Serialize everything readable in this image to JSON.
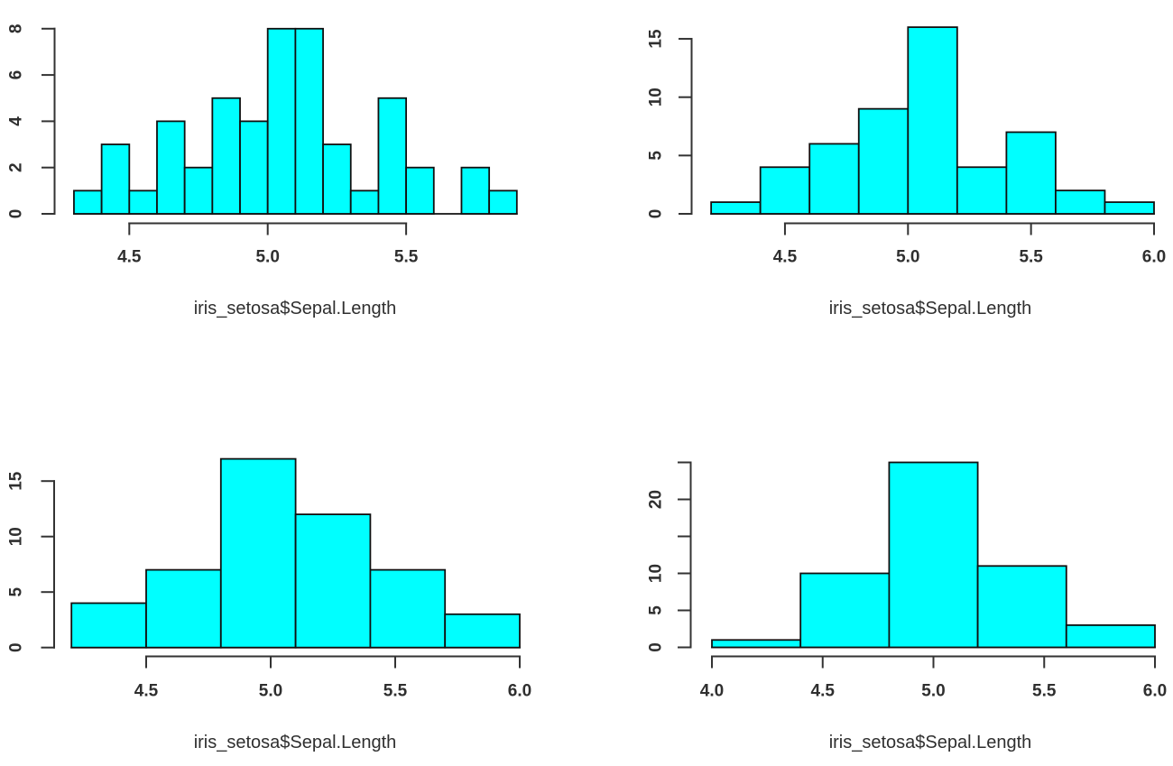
{
  "figure": {
    "background": "#ffffff",
    "bar_fill": "#00ffff",
    "bar_border": "#101010",
    "axis_color": "#333333",
    "text_color": "#2f2f2f"
  },
  "chart_data": [
    {
      "id": "top-left-histogram",
      "type": "bar",
      "subtype": "histogram",
      "title": "",
      "xlabel": "iris_setosa$Sepal.Length",
      "ylabel": "",
      "bin_start": 4.3,
      "bin_width": 0.1,
      "counts": [
        1,
        3,
        1,
        4,
        2,
        5,
        4,
        8,
        8,
        3,
        1,
        5,
        2,
        0,
        2,
        1
      ],
      "xlim": [
        4.3,
        5.9
      ],
      "ylim": [
        0,
        8
      ],
      "x_ticks": [
        4.5,
        5.0,
        5.5
      ],
      "x_tick_labels": [
        "4.5",
        "5.0",
        "5.5"
      ],
      "y_ticks": [
        0,
        2,
        4,
        6,
        8
      ],
      "y_tick_labels": [
        "0",
        "2",
        "4",
        "6",
        "8"
      ],
      "grid": false,
      "legend": false
    },
    {
      "id": "top-right-histogram",
      "type": "bar",
      "subtype": "histogram",
      "title": "",
      "xlabel": "iris_setosa$Sepal.Length",
      "ylabel": "",
      "bin_start": 4.2,
      "bin_width": 0.2,
      "counts": [
        1,
        4,
        6,
        9,
        16,
        4,
        7,
        2,
        1
      ],
      "xlim": [
        4.2,
        6.0
      ],
      "ylim": [
        0,
        16
      ],
      "x_ticks": [
        4.5,
        5.0,
        5.5,
        6.0
      ],
      "x_tick_labels": [
        "4.5",
        "5.0",
        "5.5",
        "6.0"
      ],
      "y_ticks": [
        0,
        5,
        10,
        15
      ],
      "y_tick_labels": [
        "0",
        "5",
        "10",
        "15"
      ],
      "grid": false,
      "legend": false
    },
    {
      "id": "bottom-left-histogram",
      "type": "bar",
      "subtype": "histogram",
      "title": "",
      "xlabel": "iris_setosa$Sepal.Length",
      "ylabel": "",
      "bin_start": 4.2,
      "bin_width": 0.3,
      "counts": [
        4,
        7,
        17,
        12,
        7,
        3
      ],
      "xlim": [
        4.2,
        6.0
      ],
      "ylim": [
        0,
        17
      ],
      "x_ticks": [
        4.5,
        5.0,
        5.5,
        6.0
      ],
      "x_tick_labels": [
        "4.5",
        "5.0",
        "5.5",
        "6.0"
      ],
      "y_ticks": [
        0,
        5,
        10,
        15
      ],
      "y_tick_labels": [
        "0",
        "5",
        "10",
        "15"
      ],
      "grid": false,
      "legend": false
    },
    {
      "id": "bottom-right-histogram",
      "type": "bar",
      "subtype": "histogram",
      "title": "",
      "xlabel": "iris_setosa$Sepal.Length",
      "ylabel": "",
      "bin_start": 4.0,
      "bin_width": 0.4,
      "counts": [
        1,
        10,
        25,
        11,
        3
      ],
      "xlim": [
        4.0,
        6.0
      ],
      "ylim": [
        0,
        25
      ],
      "x_ticks": [
        4.0,
        4.5,
        5.0,
        5.5,
        6.0
      ],
      "x_tick_labels": [
        "4.0",
        "4.5",
        "5.0",
        "5.5",
        "6.0"
      ],
      "y_ticks": [
        0,
        5,
        10,
        15,
        20,
        25
      ],
      "y_tick_labels": [
        "0",
        "5",
        "10",
        "",
        "20",
        ""
      ],
      "grid": false,
      "legend": false
    }
  ]
}
